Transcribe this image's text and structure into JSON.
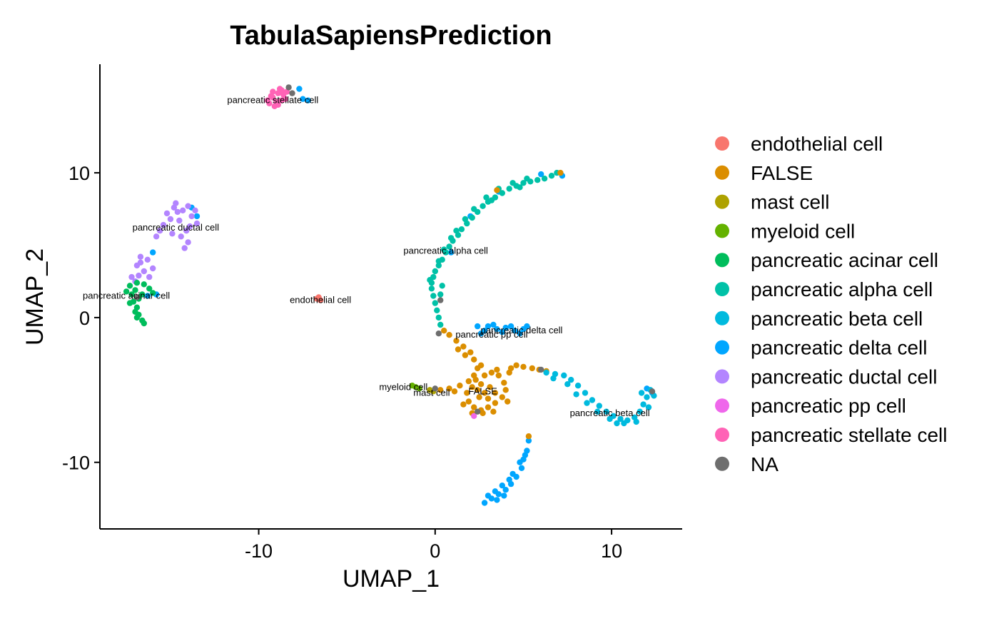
{
  "chart_data": {
    "type": "scatter",
    "title": "TabulaSapiensPrediction",
    "xlabel": "UMAP_1",
    "ylabel": "UMAP_2",
    "xlim": [
      -19,
      14
    ],
    "ylim": [
      -14.6,
      17.5
    ],
    "x_ticks": [
      -10,
      0,
      10
    ],
    "y_ticks": [
      -10,
      0,
      10
    ],
    "x_tick_labels": [
      "-10",
      "0",
      "10"
    ],
    "y_tick_labels": [
      "-10",
      "0",
      "10"
    ],
    "grid": false,
    "legend_position": "right",
    "legend": [
      {
        "name": "endothelial cell",
        "color": "#F8766D"
      },
      {
        "name": "FALSE",
        "color": "#DB8E00"
      },
      {
        "name": "mast cell",
        "color": "#AEA200"
      },
      {
        "name": "myeloid cell",
        "color": "#64B200"
      },
      {
        "name": "pancreatic acinar cell",
        "color": "#00BD5C"
      },
      {
        "name": "pancreatic alpha cell",
        "color": "#00C1A7"
      },
      {
        "name": "pancreatic beta cell",
        "color": "#00BADE"
      },
      {
        "name": "pancreatic delta cell",
        "color": "#00A6FF"
      },
      {
        "name": "pancreatic ductal cell",
        "color": "#B385FF"
      },
      {
        "name": "pancreatic pp cell",
        "color": "#EF67EB"
      },
      {
        "name": "pancreatic stellate cell",
        "color": "#FF63B6"
      },
      {
        "name": "NA",
        "color": "#6E6E6E"
      }
    ],
    "cluster_labels": [
      {
        "text": "pancreatic stellate cell",
        "x": -9.2,
        "y": 15.0
      },
      {
        "text": "pancreatic ductal cell",
        "x": -14.7,
        "y": 6.2
      },
      {
        "text": "pancreatic alpha cell",
        "x": 0.6,
        "y": 4.6
      },
      {
        "text": "pancreatic acinar cell",
        "x": -17.5,
        "y": 1.5
      },
      {
        "text": "endothelial cell",
        "x": -6.5,
        "y": 1.2
      },
      {
        "text": "pancreatic delta cell",
        "x": 4.9,
        "y": -0.9
      },
      {
        "text": "pancreatic pp cell",
        "x": 3.2,
        "y": -1.2
      },
      {
        "text": "myeloid cell",
        "x": -1.8,
        "y": -4.8
      },
      {
        "text": "mast cell",
        "x": -0.2,
        "y": -5.2
      },
      {
        "text": "FALSE",
        "x": 2.7,
        "y": -5.1
      },
      {
        "text": "pancreatic beta cell",
        "x": 9.9,
        "y": -6.6
      }
    ],
    "clusters": [
      {
        "name": "pancreatic stellate cell",
        "points": [
          [
            -8.9,
            15.5
          ],
          [
            -9.2,
            15.2
          ],
          [
            -8.7,
            15.0
          ],
          [
            -9.4,
            14.8
          ],
          [
            -8.6,
            15.4
          ],
          [
            -9.0,
            14.9
          ],
          [
            -8.8,
            15.8
          ],
          [
            -9.3,
            15.3
          ],
          [
            -8.5,
            15.1
          ],
          [
            -9.1,
            14.6
          ],
          [
            -8.4,
            15.6
          ],
          [
            -9.5,
            15.0
          ],
          [
            -8.9,
            14.7
          ],
          [
            -8.7,
            15.7
          ],
          [
            -9.2,
            15.6
          ]
        ]
      },
      {
        "name": "pancreatic delta cell",
        "points": [
          [
            -7.7,
            15.8
          ],
          [
            -7.5,
            15.1
          ],
          [
            -7.2,
            15.0
          ],
          [
            -16.0,
            4.5
          ],
          [
            -16.3,
            1.5
          ],
          [
            -15.8,
            1.6
          ],
          [
            -13.8,
            7.6
          ],
          [
            -13.5,
            7.0
          ],
          [
            2.4,
            -0.6
          ],
          [
            3.0,
            -0.6
          ],
          [
            3.5,
            -0.8
          ],
          [
            4.0,
            -0.7
          ],
          [
            4.5,
            -0.9
          ],
          [
            5.0,
            -0.8
          ],
          [
            2.8,
            -0.9
          ],
          [
            3.3,
            -0.5
          ],
          [
            3.8,
            -1.0
          ],
          [
            4.3,
            -0.6
          ],
          [
            4.8,
            -1.1
          ],
          [
            5.2,
            -0.6
          ],
          [
            2.6,
            -1.1
          ],
          [
            5.3,
            -8.5
          ],
          [
            5.2,
            -9.2
          ],
          [
            5.0,
            -9.8
          ],
          [
            4.9,
            -10.4
          ],
          [
            4.6,
            -11.0
          ],
          [
            4.3,
            -11.5
          ],
          [
            4.0,
            -11.9
          ],
          [
            3.6,
            -12.2
          ],
          [
            3.2,
            -12.5
          ],
          [
            2.8,
            -12.8
          ],
          [
            3.4,
            -12.0
          ],
          [
            3.8,
            -11.6
          ],
          [
            4.4,
            -10.8
          ],
          [
            4.8,
            -10.0
          ],
          [
            5.1,
            -9.5
          ],
          [
            3.0,
            -12.3
          ],
          [
            3.9,
            -12.3
          ],
          [
            4.2,
            -11.2
          ],
          [
            3.5,
            -12.6
          ],
          [
            12.0,
            -4.9
          ],
          [
            12.3,
            -5.2
          ],
          [
            7.2,
            9.8
          ],
          [
            6.0,
            9.9
          ],
          [
            3.6,
            8.7
          ],
          [
            2.0,
            7.0
          ],
          [
            0.9,
            4.5
          ]
        ]
      },
      {
        "name": "pancreatic ductal cell",
        "points": [
          [
            -14.7,
            7.9
          ],
          [
            -14.3,
            7.4
          ],
          [
            -14.0,
            7.7
          ],
          [
            -13.8,
            7.0
          ],
          [
            -14.5,
            6.7
          ],
          [
            -15.0,
            6.8
          ],
          [
            -15.4,
            6.4
          ],
          [
            -15.6,
            6.0
          ],
          [
            -14.9,
            5.8
          ],
          [
            -14.4,
            5.6
          ],
          [
            -14.0,
            5.2
          ],
          [
            -14.2,
            4.8
          ],
          [
            -13.9,
            6.3
          ],
          [
            -14.6,
            7.3
          ],
          [
            -15.2,
            7.2
          ],
          [
            -14.1,
            6.0
          ],
          [
            -13.6,
            7.4
          ],
          [
            -13.5,
            6.5
          ],
          [
            -15.8,
            5.6
          ],
          [
            -14.8,
            7.6
          ],
          [
            -16.7,
            3.8
          ],
          [
            -16.3,
            4.0
          ],
          [
            -16.0,
            3.4
          ],
          [
            -16.5,
            3.2
          ],
          [
            -16.8,
            2.9
          ],
          [
            -16.2,
            2.8
          ],
          [
            -16.7,
            4.2
          ],
          [
            -16.9,
            3.6
          ],
          [
            -17.2,
            2.8
          ],
          [
            -17.0,
            2.5
          ]
        ]
      },
      {
        "name": "pancreatic acinar cell",
        "points": [
          [
            -17.3,
            2.2
          ],
          [
            -17.0,
            1.9
          ],
          [
            -16.6,
            1.6
          ],
          [
            -16.2,
            2.0
          ],
          [
            -16.8,
            1.3
          ],
          [
            -17.2,
            1.6
          ],
          [
            -16.5,
            2.3
          ],
          [
            -17.5,
            1.8
          ],
          [
            -16.0,
            1.7
          ],
          [
            -16.9,
            2.4
          ],
          [
            -17.3,
            1.0
          ],
          [
            -16.9,
            0.7
          ],
          [
            -17.1,
            1.1
          ],
          [
            -16.8,
            0.2
          ],
          [
            -16.6,
            -0.2
          ],
          [
            -16.5,
            -0.4
          ],
          [
            -16.9,
            0.0
          ],
          [
            -17.0,
            0.4
          ]
        ]
      },
      {
        "name": "endothelial cell",
        "points": [
          [
            -6.6,
            1.4
          ],
          [
            -6.5,
            1.2
          ],
          [
            -6.7,
            1.3
          ]
        ]
      },
      {
        "name": "pancreatic alpha cell",
        "points": [
          [
            6.6,
            9.8
          ],
          [
            6.2,
            9.6
          ],
          [
            5.8,
            9.5
          ],
          [
            5.4,
            9.4
          ],
          [
            5.0,
            9.3
          ],
          [
            4.6,
            9.1
          ],
          [
            4.2,
            8.9
          ],
          [
            3.8,
            8.6
          ],
          [
            3.4,
            8.3
          ],
          [
            3.0,
            8.0
          ],
          [
            2.7,
            7.7
          ],
          [
            2.4,
            7.3
          ],
          [
            2.1,
            6.9
          ],
          [
            1.8,
            6.5
          ],
          [
            1.5,
            6.1
          ],
          [
            1.3,
            5.7
          ],
          [
            1.0,
            5.3
          ],
          [
            0.8,
            4.9
          ],
          [
            0.6,
            4.5
          ],
          [
            0.4,
            4.0
          ],
          [
            0.2,
            3.6
          ],
          [
            0.0,
            3.2
          ],
          [
            -0.1,
            2.8
          ],
          [
            -0.2,
            2.4
          ],
          [
            -0.2,
            2.0
          ],
          [
            -0.1,
            1.5
          ],
          [
            0.0,
            1.0
          ],
          [
            0.1,
            0.5
          ],
          [
            0.2,
            0.0
          ],
          [
            0.3,
            -0.5
          ],
          [
            5.2,
            9.6
          ],
          [
            4.4,
            9.3
          ],
          [
            3.6,
            8.9
          ],
          [
            2.9,
            8.3
          ],
          [
            2.2,
            7.5
          ],
          [
            1.7,
            6.8
          ],
          [
            1.2,
            6.0
          ],
          [
            0.9,
            5.5
          ],
          [
            0.5,
            4.7
          ],
          [
            0.2,
            3.9
          ],
          [
            -0.3,
            2.6
          ],
          [
            0.4,
            2.2
          ],
          [
            0.3,
            1.6
          ],
          [
            6.9,
            10.0
          ],
          [
            4.8,
            9.0
          ],
          [
            3.2,
            8.1
          ]
        ]
      },
      {
        "name": "FALSE",
        "points": [
          [
            7.1,
            10.0
          ],
          [
            3.5,
            8.8
          ],
          [
            0.5,
            -0.9
          ],
          [
            0.8,
            -1.2
          ],
          [
            1.2,
            -1.6
          ],
          [
            1.6,
            -2.0
          ],
          [
            2.0,
            -2.4
          ],
          [
            2.2,
            -2.9
          ],
          [
            2.4,
            -3.5
          ],
          [
            2.2,
            -4.0
          ],
          [
            1.9,
            -4.4
          ],
          [
            2.3,
            -4.3
          ],
          [
            2.8,
            -4.0
          ],
          [
            3.2,
            -3.8
          ],
          [
            3.6,
            -4.0
          ],
          [
            3.9,
            -4.5
          ],
          [
            4.0,
            -5.0
          ],
          [
            3.8,
            -5.5
          ],
          [
            3.4,
            -5.9
          ],
          [
            3.0,
            -6.2
          ],
          [
            2.6,
            -6.4
          ],
          [
            2.2,
            -6.2
          ],
          [
            1.9,
            -5.8
          ],
          [
            1.8,
            -5.2
          ],
          [
            2.1,
            -4.8
          ],
          [
            2.6,
            -4.6
          ],
          [
            3.1,
            -4.8
          ],
          [
            3.4,
            -5.2
          ],
          [
            3.0,
            -5.6
          ],
          [
            2.5,
            -5.5
          ],
          [
            2.4,
            -5.0
          ],
          [
            2.8,
            -5.2
          ],
          [
            2.7,
            -6.6
          ],
          [
            2.1,
            -6.6
          ],
          [
            3.3,
            -6.5
          ],
          [
            1.6,
            -6.0
          ],
          [
            4.1,
            -5.8
          ],
          [
            4.2,
            -3.8
          ],
          [
            3.5,
            -3.6
          ],
          [
            2.6,
            -3.3
          ],
          [
            4.3,
            -3.5
          ],
          [
            4.6,
            -3.3
          ],
          [
            5.0,
            -3.4
          ],
          [
            5.5,
            -3.5
          ],
          [
            5.9,
            -3.6
          ],
          [
            6.3,
            -3.7
          ],
          [
            1.7,
            -2.6
          ],
          [
            1.3,
            -2.2
          ],
          [
            1.4,
            -4.7
          ],
          [
            0.8,
            -4.9
          ],
          [
            0.3,
            -5.0
          ],
          [
            1.1,
            -5.1
          ],
          [
            5.3,
            -8.2
          ]
        ]
      },
      {
        "name": "pancreatic beta cell",
        "points": [
          [
            6.3,
            -3.8
          ],
          [
            6.8,
            -3.9
          ],
          [
            7.3,
            -4.0
          ],
          [
            7.7,
            -4.3
          ],
          [
            8.1,
            -4.7
          ],
          [
            8.5,
            -5.2
          ],
          [
            8.9,
            -5.7
          ],
          [
            9.3,
            -6.1
          ],
          [
            9.7,
            -6.5
          ],
          [
            10.1,
            -6.8
          ],
          [
            10.5,
            -7.0
          ],
          [
            10.9,
            -7.1
          ],
          [
            11.3,
            -6.9
          ],
          [
            11.6,
            -6.5
          ],
          [
            11.8,
            -6.0
          ],
          [
            12.0,
            -5.5
          ],
          [
            12.2,
            -5.0
          ],
          [
            12.4,
            -5.4
          ],
          [
            10.7,
            -7.3
          ],
          [
            9.9,
            -7.0
          ],
          [
            9.2,
            -6.5
          ],
          [
            8.6,
            -5.9
          ],
          [
            8.0,
            -5.3
          ],
          [
            7.5,
            -4.6
          ],
          [
            11.4,
            -7.2
          ],
          [
            10.3,
            -7.3
          ],
          [
            12.1,
            -6.2
          ],
          [
            11.7,
            -5.2
          ],
          [
            6.7,
            -4.2
          ]
        ]
      },
      {
        "name": "myeloid cell",
        "points": [
          [
            -1.1,
            -4.8
          ],
          [
            -0.9,
            -4.9
          ],
          [
            -1.3,
            -4.7
          ]
        ]
      },
      {
        "name": "mast cell",
        "points": [
          [
            -0.3,
            -5.0
          ],
          [
            -0.1,
            -5.1
          ]
        ]
      },
      {
        "name": "pancreatic pp cell",
        "points": [
          [
            2.2,
            -6.8
          ]
        ]
      },
      {
        "name": "NA",
        "points": [
          [
            -8.3,
            15.9
          ],
          [
            -8.1,
            15.5
          ],
          [
            0.3,
            1.2
          ],
          [
            0.2,
            -1.1
          ],
          [
            0.0,
            -4.9
          ],
          [
            6.0,
            -3.6
          ],
          [
            12.3,
            -5.1
          ],
          [
            2.4,
            -6.5
          ],
          [
            -16.9,
            1.4
          ]
        ]
      }
    ]
  }
}
